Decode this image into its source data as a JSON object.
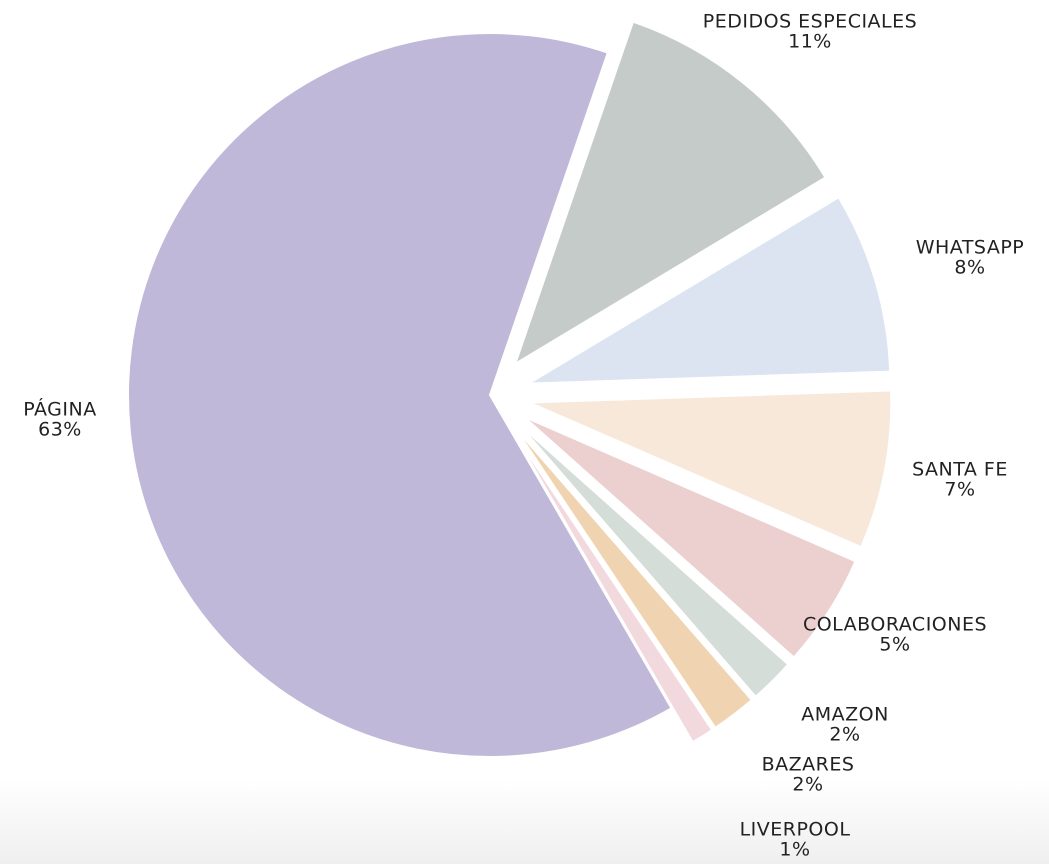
{
  "chart_data": {
    "type": "pie",
    "categories": [
      "PEDIDOS ESPECIALES",
      "WHATSAPP",
      "SANTA FE",
      "COLABORACIONES",
      "AMAZON",
      "BAZARES",
      "LIVERPOOL",
      "PÁGINA"
    ],
    "values": [
      11,
      8,
      7,
      5,
      2,
      2,
      1,
      63
    ],
    "value_labels": [
      "11%",
      "8%",
      "7%",
      "5%",
      "2%",
      "2%",
      "1%",
      "63%"
    ],
    "colors": [
      "#c4cbc8",
      "#dce4f2",
      "#f8e8da",
      "#ecd0d0",
      "#d5ddd9",
      "#f0d4b2",
      "#f2d9de",
      "#c0b8d8"
    ]
  }
}
